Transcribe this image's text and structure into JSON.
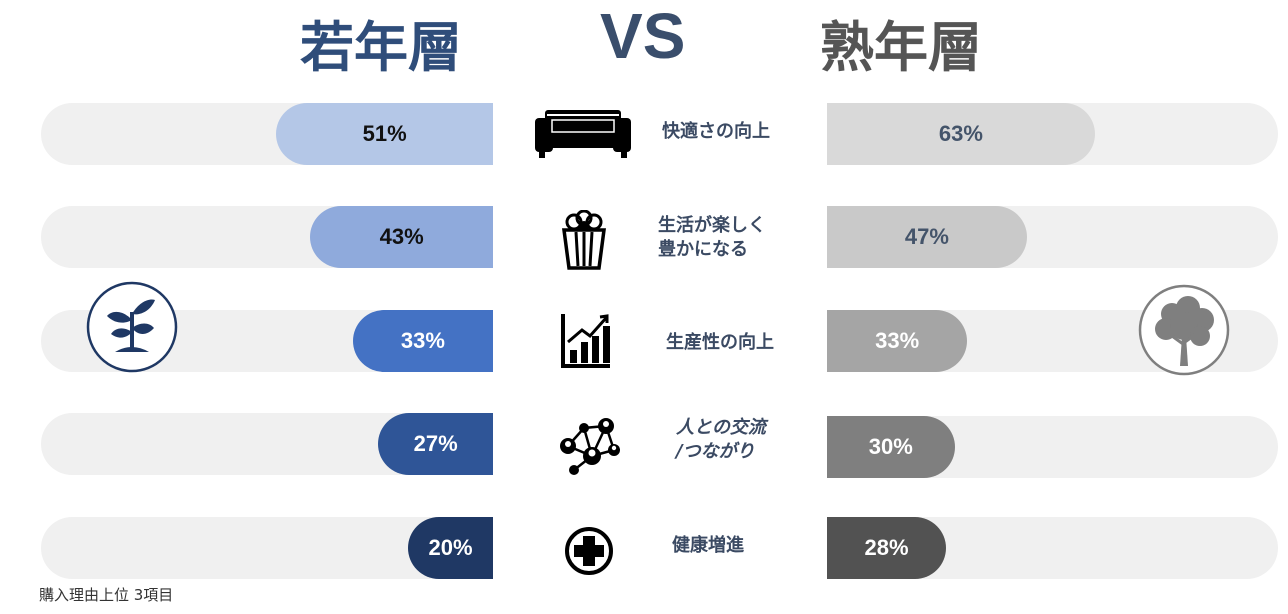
{
  "header": {
    "young_label": "若年層",
    "vs_label": "VS",
    "old_label": "熟年層"
  },
  "caption": "購入理由上位 3項目",
  "chart_data": {
    "type": "bar",
    "categories": [
      "快適さの向上",
      "生活が楽しく豊かになる",
      "生産性の向上",
      "人との交流/つながり",
      "健康増進"
    ],
    "category_lines": [
      [
        "快適さの向上"
      ],
      [
        "生活が楽しく",
        "豊かになる"
      ],
      [
        "生産性の向上"
      ],
      [
        "人との交流",
        "/つながり"
      ],
      [
        "健康増進"
      ]
    ],
    "series": [
      {
        "name": "若年層",
        "values": [
          51,
          43,
          33,
          27,
          20
        ],
        "labels": [
          "51%",
          "43%",
          "33%",
          "27%",
          "20%"
        ],
        "colors": [
          "#b4c7e7",
          "#8faadc",
          "#4472c4",
          "#2f5597",
          "#1f3864"
        ],
        "label_colors": [
          "#111111",
          "#111111",
          "#ffffff",
          "#ffffff",
          "#ffffff"
        ]
      },
      {
        "name": "熟年層",
        "values": [
          63,
          47,
          33,
          30,
          28
        ],
        "labels": [
          "63%",
          "47%",
          "33%",
          "30%",
          "28%"
        ],
        "colors": [
          "#d9d9d9",
          "#c9c9c9",
          "#a5a5a5",
          "#7f7f7f",
          "#525252"
        ],
        "label_colors": [
          "#44546a",
          "#44546a",
          "#ffffff",
          "#ffffff",
          "#ffffff"
        ]
      }
    ],
    "icons": [
      "sofa-icon",
      "popcorn-icon",
      "bar-chart-icon",
      "network-icon",
      "medical-cross-icon"
    ],
    "xlim": [
      0,
      100
    ],
    "grid": false,
    "legend": "none"
  }
}
